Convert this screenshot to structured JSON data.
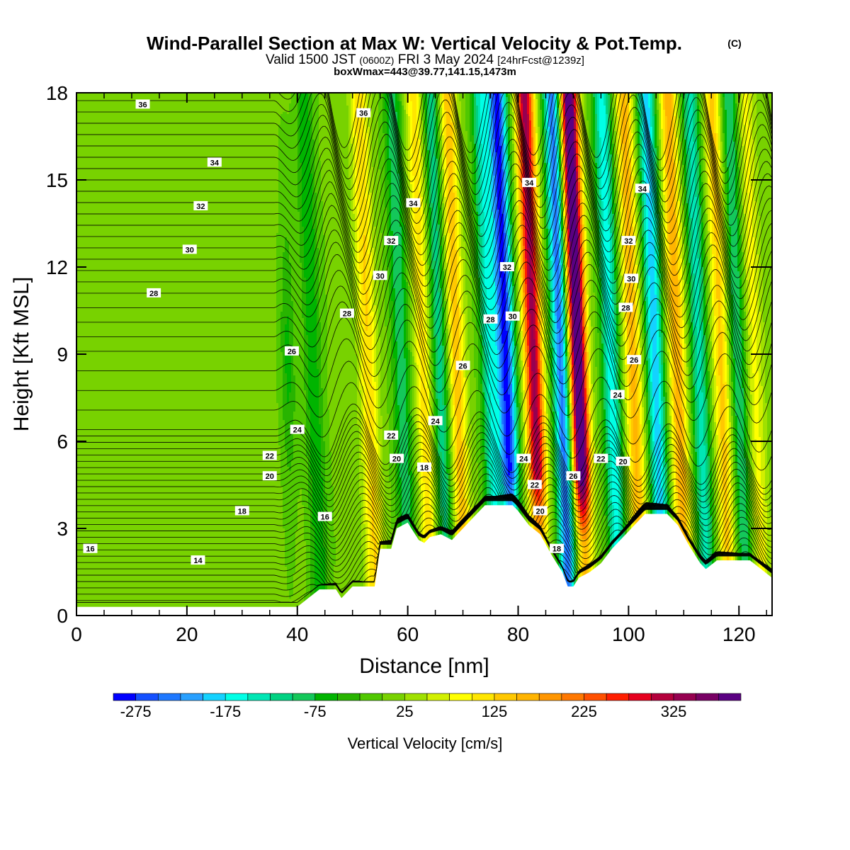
{
  "title": {
    "main": "Wind-Parallel Section at Max W: Vertical Velocity & Pot.Temp.",
    "copyright": "(C)",
    "valid_a": "Valid 1500 JST",
    "valid_z": "(0600Z)",
    "valid_b": "FRI 3 May 2024",
    "fcst": "[24hrFcst@1239z]",
    "box": "boxWmax=443@39.77,141.15,1473m"
  },
  "chart_data": {
    "type": "heatmap",
    "title": "Wind-Parallel Section at Max W: Vertical Velocity & Pot.Temp.",
    "xlabel": "Distance [nm]",
    "ylabel": "Height [Kft MSL]",
    "xlim": [
      0,
      126
    ],
    "ylim": [
      0,
      18
    ],
    "x_ticks": [
      0,
      20,
      40,
      60,
      80,
      100,
      120
    ],
    "y_ticks": [
      0,
      3,
      6,
      9,
      12,
      15,
      18
    ],
    "x_tick_labels": [
      "0",
      "20",
      "40",
      "60",
      "80",
      "100",
      "120"
    ],
    "y_tick_labels": [
      "0",
      "3",
      "6",
      "9",
      "12",
      "15",
      "18"
    ],
    "colorbar": {
      "label": "Vertical Velocity [cm/s]",
      "min": -300,
      "max": 400,
      "step": 25,
      "tick_values": [
        -275,
        -175,
        -75,
        25,
        125,
        225,
        325
      ],
      "tick_labels": [
        "-275",
        "-175",
        "-75",
        "25",
        "125",
        "225",
        "325"
      ],
      "colors": [
        "#0000ff",
        "#1450ff",
        "#1e78ff",
        "#28a0ff",
        "#14d2ff",
        "#00ffe6",
        "#00e6b4",
        "#00d282",
        "#14c85a",
        "#00b400",
        "#28b400",
        "#50c800",
        "#78d200",
        "#a0e100",
        "#d2f000",
        "#ffff00",
        "#ffe600",
        "#ffc800",
        "#ffb400",
        "#ff9600",
        "#ff7800",
        "#ff5000",
        "#ff1e00",
        "#e6001e",
        "#b4003c",
        "#960050",
        "#780064",
        "#5a0082"
      ]
    },
    "wave_crests": [
      {
        "x": 54,
        "w": 120
      },
      {
        "x": 64,
        "w": 110
      },
      {
        "x": 70,
        "w": 140
      },
      {
        "x": 84,
        "w": 330
      },
      {
        "x": 92,
        "w": 443
      },
      {
        "x": 102,
        "w": 150
      },
      {
        "x": 110,
        "w": 160
      },
      {
        "x": 118,
        "w": 130
      },
      {
        "x": 124,
        "w": 80
      }
    ],
    "wave_troughs": [
      {
        "x": 44,
        "w": -75
      },
      {
        "x": 60,
        "w": -100
      },
      {
        "x": 67,
        "w": -120
      },
      {
        "x": 76,
        "w": -150
      },
      {
        "x": 79,
        "w": -290
      },
      {
        "x": 89,
        "w": -250
      },
      {
        "x": 98,
        "w": -170
      },
      {
        "x": 106,
        "w": -200
      },
      {
        "x": 114,
        "w": -140
      },
      {
        "x": 121,
        "w": -110
      }
    ],
    "theta_contour_labels": [
      {
        "label": "14",
        "x": 22,
        "h": 1.9
      },
      {
        "label": "16",
        "x": 2.5,
        "h": 2.3
      },
      {
        "label": "18",
        "x": 30,
        "h": 3.6
      },
      {
        "label": "20",
        "x": 35,
        "h": 4.8
      },
      {
        "label": "22",
        "x": 35,
        "h": 5.5
      },
      {
        "label": "24",
        "x": 40,
        "h": 6.4
      },
      {
        "label": "26",
        "x": 39,
        "h": 9.1
      },
      {
        "label": "28",
        "x": 14,
        "h": 11.1
      },
      {
        "label": "30",
        "x": 20.5,
        "h": 12.6
      },
      {
        "label": "32",
        "x": 22.5,
        "h": 14.1
      },
      {
        "label": "34",
        "x": 25,
        "h": 15.6
      },
      {
        "label": "36",
        "x": 12,
        "h": 17.6
      },
      {
        "label": "16",
        "x": 45,
        "h": 3.4
      },
      {
        "label": "22",
        "x": 57,
        "h": 6.2
      },
      {
        "label": "20",
        "x": 58,
        "h": 5.4
      },
      {
        "label": "18",
        "x": 63,
        "h": 5.1
      },
      {
        "label": "24",
        "x": 65,
        "h": 6.7
      },
      {
        "label": "26",
        "x": 70,
        "h": 8.6
      },
      {
        "label": "28",
        "x": 49,
        "h": 10.4
      },
      {
        "label": "28",
        "x": 75,
        "h": 10.2
      },
      {
        "label": "30",
        "x": 55,
        "h": 11.7
      },
      {
        "label": "30",
        "x": 79,
        "h": 10.3
      },
      {
        "label": "32",
        "x": 57,
        "h": 12.9
      },
      {
        "label": "32",
        "x": 78,
        "h": 12.0
      },
      {
        "label": "34",
        "x": 61,
        "h": 14.2
      },
      {
        "label": "34",
        "x": 82,
        "h": 14.9
      },
      {
        "label": "36",
        "x": 52,
        "h": 17.3
      },
      {
        "label": "24",
        "x": 81,
        "h": 5.4
      },
      {
        "label": "22",
        "x": 83,
        "h": 4.5
      },
      {
        "label": "20",
        "x": 84,
        "h": 3.6
      },
      {
        "label": "18",
        "x": 87,
        "h": 2.3
      },
      {
        "label": "26",
        "x": 90,
        "h": 4.8
      },
      {
        "label": "22",
        "x": 95,
        "h": 5.4
      },
      {
        "label": "20",
        "x": 99,
        "h": 5.3
      },
      {
        "label": "24",
        "x": 98,
        "h": 7.6
      },
      {
        "label": "26",
        "x": 101,
        "h": 8.8
      },
      {
        "label": "28",
        "x": 99.5,
        "h": 10.6
      },
      {
        "label": "30",
        "x": 100.5,
        "h": 11.6
      },
      {
        "label": "32",
        "x": 100,
        "h": 12.9
      },
      {
        "label": "34",
        "x": 102.5,
        "h": 14.7
      }
    ],
    "terrain": [
      [
        0,
        0.3
      ],
      [
        40,
        0.3
      ],
      [
        42,
        0.6
      ],
      [
        44,
        0.9
      ],
      [
        47,
        0.9
      ],
      [
        48,
        0.6
      ],
      [
        50,
        1.0
      ],
      [
        54,
        1.0
      ],
      [
        55,
        2.3
      ],
      [
        57,
        2.3
      ],
      [
        58,
        3.0
      ],
      [
        60,
        3.2
      ],
      [
        61,
        2.9
      ],
      [
        62,
        2.6
      ],
      [
        63,
        2.5
      ],
      [
        64,
        2.7
      ],
      [
        66,
        2.8
      ],
      [
        68,
        2.6
      ],
      [
        69,
        2.8
      ],
      [
        70,
        3.0
      ],
      [
        72,
        3.4
      ],
      [
        74,
        3.8
      ],
      [
        79,
        3.8
      ],
      [
        80,
        3.6
      ],
      [
        82,
        3.1
      ],
      [
        84,
        2.8
      ],
      [
        86,
        2.1
      ],
      [
        88,
        1.5
      ],
      [
        89,
        1.0
      ],
      [
        90,
        1.0
      ],
      [
        91,
        1.3
      ],
      [
        93,
        1.5
      ],
      [
        95,
        1.8
      ],
      [
        97,
        2.3
      ],
      [
        100,
        2.9
      ],
      [
        103,
        3.5
      ],
      [
        107,
        3.5
      ],
      [
        109,
        3.1
      ],
      [
        111,
        2.4
      ],
      [
        113,
        1.8
      ],
      [
        114,
        1.6
      ],
      [
        116,
        1.9
      ],
      [
        122,
        1.9
      ],
      [
        124,
        1.6
      ],
      [
        126,
        1.3
      ]
    ]
  }
}
